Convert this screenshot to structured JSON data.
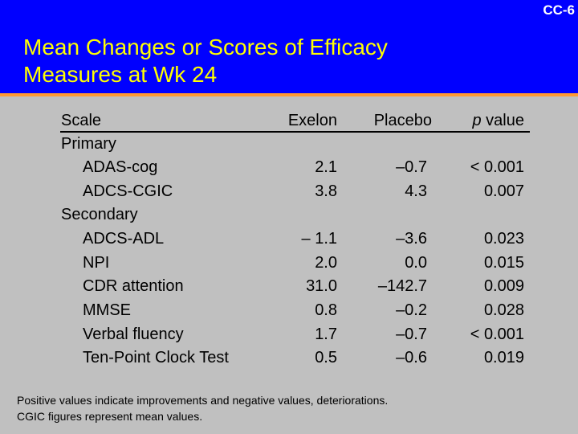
{
  "slide_id": "CC-6",
  "title_line1": "Mean Changes or Scores of Efficacy",
  "title_line2": "Measures at Wk 24",
  "columns": {
    "scale": "Scale",
    "exelon": "Exelon",
    "placebo": "Placebo",
    "p_italic": "p",
    "p_rest": " value"
  },
  "rows": [
    {
      "label": "Primary",
      "exelon": "",
      "placebo": "",
      "p": ""
    },
    {
      "label": "ADAS-cog",
      "exelon": "2.1",
      "placebo": "–0.7",
      "p": "< 0.001"
    },
    {
      "label": "ADCS-CGIC",
      "exelon": "3.8",
      "placebo": "4.3",
      "p": "0.007"
    },
    {
      "label": "Secondary",
      "exelon": "",
      "placebo": "",
      "p": ""
    },
    {
      "label": "ADCS-ADL",
      "exelon": "– 1.1",
      "placebo": "–3.6",
      "p": "0.023"
    },
    {
      "label": "NPI",
      "exelon": "2.0",
      "placebo": "0.0",
      "p": "0.015"
    },
    {
      "label": "CDR attention",
      "exelon": "31.0",
      "placebo": "–142.7",
      "p": "0.009"
    },
    {
      "label": "MMSE",
      "exelon": "0.8",
      "placebo": "–0.2",
      "p": "0.028"
    },
    {
      "label": "Verbal fluency",
      "exelon": "1.7",
      "placebo": "–0.7",
      "p": "< 0.001"
    },
    {
      "label": "Ten-Point Clock Test",
      "exelon": "0.5",
      "placebo": "–0.6",
      "p": "0.019"
    }
  ],
  "footnote_line1": "Positive values indicate improvements and negative values, deteriorations.",
  "footnote_line2": "CGIC figures represent mean values.",
  "colors": {
    "header_bg": "#0000ff",
    "title": "#ffff00",
    "accent_rule": "#ff9933",
    "page_bg": "#c0c0c0"
  }
}
